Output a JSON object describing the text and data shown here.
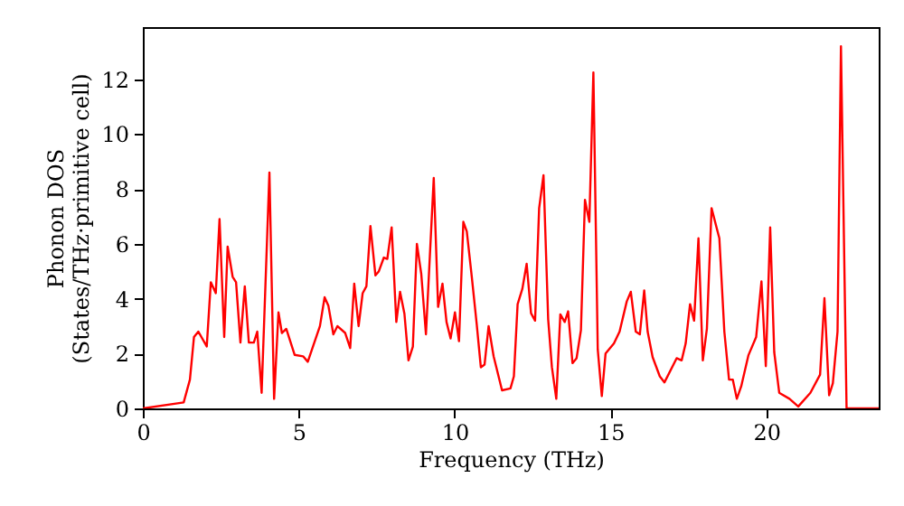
{
  "chart_data": {
    "type": "line",
    "xlabel": "Frequency (THz)",
    "ylabel": "Phonon DOS\n(States/THz·primitive cell)",
    "xlim": [
      0,
      23.6
    ],
    "ylim": [
      0,
      13.9
    ],
    "xticks": [
      0,
      5,
      10,
      15,
      20
    ],
    "yticks": [
      0,
      2,
      4,
      6,
      8,
      10,
      12
    ],
    "grid": false,
    "marker": "none",
    "line_style": "solid",
    "series": [
      {
        "color": "#ff0000",
        "x": [
          0,
          1.31,
          1.51,
          1.64,
          1.78,
          2.05,
          2.18,
          2.34,
          2.46,
          2.61,
          2.72,
          2.88,
          2.99,
          3.13,
          3.27,
          3.4,
          3.56,
          3.67,
          3.81,
          4.06,
          4.21,
          4.35,
          4.46,
          4.6,
          4.87,
          5.14,
          5.29,
          5.68,
          5.83,
          5.95,
          6.11,
          6.24,
          6.49,
          6.65,
          6.78,
          6.92,
          7.05,
          7.17,
          7.3,
          7.46,
          7.57,
          7.73,
          7.84,
          7.98,
          8.13,
          8.25,
          8.39,
          8.52,
          8.66,
          8.79,
          8.93,
          9.08,
          9.33,
          9.47,
          9.61,
          9.74,
          9.87,
          10.01,
          10.14,
          10.28,
          10.39,
          10.55,
          10.71,
          10.84,
          10.96,
          11.09,
          11.25,
          11.52,
          11.79,
          11.9,
          12.02,
          12.17,
          12.31,
          12.45,
          12.58,
          12.71,
          12.85,
          13.0,
          13.12,
          13.26,
          13.39,
          13.53,
          13.64,
          13.78,
          13.91,
          14.05,
          14.18,
          14.32,
          14.45,
          14.59,
          14.72,
          14.84,
          15.11,
          15.29,
          15.52,
          15.65,
          15.81,
          15.94,
          16.08,
          16.19,
          16.35,
          16.58,
          16.73,
          17.12,
          17.28,
          17.41,
          17.55,
          17.68,
          17.82,
          17.96,
          18.09,
          18.24,
          18.49,
          18.65,
          18.8,
          18.92,
          19.05,
          19.19,
          19.42,
          19.67,
          19.84,
          19.98,
          20.12,
          20.25,
          20.41,
          20.74,
          21.02,
          21.41,
          21.72,
          21.86,
          22.01,
          22.13,
          22.28,
          22.39,
          22.57,
          23.6
        ],
        "values": [
          0,
          0.22,
          1.05,
          2.6,
          2.8,
          2.26,
          4.6,
          4.2,
          6.9,
          2.6,
          5.9,
          4.8,
          4.6,
          2.4,
          4.45,
          2.4,
          2.4,
          2.8,
          0.57,
          8.6,
          0.35,
          3.5,
          2.75,
          2.9,
          1.95,
          1.9,
          1.7,
          3.0,
          4.05,
          3.75,
          2.7,
          3.0,
          2.75,
          2.2,
          4.55,
          3.0,
          4.2,
          4.45,
          6.65,
          4.85,
          5.0,
          5.5,
          5.45,
          6.6,
          3.15,
          4.25,
          3.45,
          1.75,
          2.25,
          6.0,
          4.9,
          2.7,
          8.4,
          3.7,
          4.55,
          3.15,
          2.55,
          3.5,
          2.45,
          6.8,
          6.45,
          4.8,
          3.05,
          1.5,
          1.6,
          3.0,
          1.9,
          0.66,
          0.73,
          1.17,
          3.8,
          4.35,
          5.27,
          3.47,
          3.2,
          7.3,
          8.5,
          3.25,
          1.5,
          0.35,
          3.43,
          3.15,
          3.54,
          1.65,
          1.83,
          2.85,
          7.6,
          6.8,
          12.25,
          2.15,
          0.45,
          2.0,
          2.37,
          2.8,
          3.9,
          4.25,
          2.8,
          2.7,
          4.3,
          2.8,
          1.87,
          1.17,
          0.95,
          1.83,
          1.75,
          2.37,
          3.8,
          3.2,
          6.2,
          1.75,
          2.9,
          7.3,
          6.2,
          2.8,
          1.05,
          1.05,
          0.35,
          0.8,
          1.93,
          2.6,
          4.63,
          1.54,
          6.6,
          2.05,
          0.57,
          0.35,
          0.07,
          0.57,
          1.23,
          4.02,
          0.48,
          0.92,
          2.8,
          13.2,
          0,
          0
        ]
      }
    ]
  }
}
